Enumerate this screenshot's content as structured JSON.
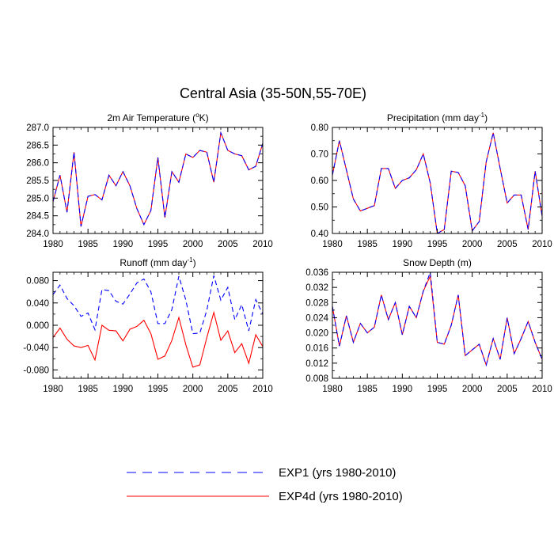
{
  "main_title": "Central Asia (35-50N,55-70E)",
  "colors": {
    "exp1": "#0000ff",
    "exp4d": "#ff0000"
  },
  "legend": [
    {
      "key": "exp1",
      "label": "EXP1 (yrs 1980-2010)",
      "style": "dashed"
    },
    {
      "key": "exp4d",
      "label": "EXP4d (yrs 1980-2010)",
      "style": "solid"
    }
  ],
  "chart_data": [
    {
      "type": "line",
      "id": "temp",
      "title": "2m Air Temperature (",
      "title_sup": "o",
      "title_post": "K)",
      "xlim": [
        1980,
        2010
      ],
      "ylim": [
        284.0,
        287.0
      ],
      "x_ticks": [
        "1980",
        "1985",
        "1990",
        "1995",
        "2000",
        "2005",
        "2010"
      ],
      "y_ticks": [
        "284.0",
        "284.5",
        "285.0",
        "285.5",
        "286.0",
        "286.5",
        "287.0"
      ],
      "x": [
        1980,
        1981,
        1982,
        1983,
        1984,
        1985,
        1986,
        1987,
        1988,
        1989,
        1990,
        1991,
        1992,
        1993,
        1994,
        1995,
        1996,
        1997,
        1998,
        1999,
        2000,
        2001,
        2002,
        2003,
        2004,
        2005,
        2006,
        2007,
        2008,
        2009,
        2010
      ],
      "series": [
        {
          "name": "EXP1",
          "style": "dashed",
          "values": [
            284.9,
            285.65,
            284.6,
            286.3,
            284.2,
            285.05,
            285.1,
            284.95,
            285.65,
            285.35,
            285.75,
            285.35,
            284.7,
            284.25,
            284.65,
            286.15,
            284.45,
            285.75,
            285.45,
            286.25,
            286.15,
            286.35,
            286.3,
            285.45,
            286.85,
            286.35,
            286.25,
            286.2,
            285.8,
            285.9,
            286.55
          ]
        },
        {
          "name": "EXP4d",
          "style": "solid",
          "values": [
            284.9,
            285.65,
            284.6,
            286.3,
            284.2,
            285.05,
            285.1,
            284.95,
            285.65,
            285.35,
            285.75,
            285.35,
            284.7,
            284.25,
            284.65,
            286.15,
            284.45,
            285.75,
            285.45,
            286.25,
            286.15,
            286.35,
            286.3,
            285.45,
            286.85,
            286.35,
            286.25,
            286.2,
            285.8,
            285.9,
            286.55
          ]
        }
      ]
    },
    {
      "type": "line",
      "id": "precip",
      "title": "Precipitation (mm day",
      "title_sup": "-1",
      "title_post": ")",
      "xlim": [
        1980,
        2010
      ],
      "ylim": [
        0.4,
        0.8
      ],
      "x_ticks": [
        "1980",
        "1985",
        "1990",
        "1995",
        "2000",
        "2005",
        "2010"
      ],
      "y_ticks": [
        "0.40",
        "0.50",
        "0.60",
        "0.70",
        "0.80"
      ],
      "x": [
        1980,
        1981,
        1982,
        1983,
        1984,
        1985,
        1986,
        1987,
        1988,
        1989,
        1990,
        1991,
        1992,
        1993,
        1994,
        1995,
        1996,
        1997,
        1998,
        1999,
        2000,
        2001,
        2002,
        2003,
        2004,
        2005,
        2006,
        2007,
        2008,
        2009,
        2010
      ],
      "series": [
        {
          "name": "EXP1",
          "style": "dashed",
          "values": [
            0.62,
            0.75,
            0.64,
            0.53,
            0.485,
            0.495,
            0.505,
            0.645,
            0.645,
            0.57,
            0.6,
            0.61,
            0.64,
            0.7,
            0.59,
            0.4,
            0.415,
            0.635,
            0.63,
            0.58,
            0.41,
            0.445,
            0.67,
            0.78,
            0.645,
            0.515,
            0.545,
            0.545,
            0.415,
            0.635,
            0.465
          ]
        },
        {
          "name": "EXP4d",
          "style": "solid",
          "values": [
            0.62,
            0.75,
            0.64,
            0.53,
            0.485,
            0.495,
            0.505,
            0.645,
            0.645,
            0.57,
            0.6,
            0.61,
            0.64,
            0.7,
            0.59,
            0.4,
            0.415,
            0.635,
            0.63,
            0.58,
            0.41,
            0.445,
            0.67,
            0.78,
            0.645,
            0.515,
            0.545,
            0.545,
            0.415,
            0.635,
            0.465
          ]
        }
      ]
    },
    {
      "type": "line",
      "id": "runoff",
      "title": "Runoff (mm day",
      "title_sup": "-1",
      "title_post": ")",
      "xlim": [
        1980,
        2010
      ],
      "ylim": [
        -0.095,
        0.095
      ],
      "x_ticks": [
        "1980",
        "1985",
        "1990",
        "1995",
        "2000",
        "2005",
        "2010"
      ],
      "y_ticks": [
        "-0.080",
        "-0.040",
        "0.000",
        "0.040",
        "0.080"
      ],
      "y_tick_values": [
        -0.08,
        -0.04,
        0.0,
        0.04,
        0.08
      ],
      "x": [
        1980,
        1981,
        1982,
        1983,
        1984,
        1985,
        1986,
        1987,
        1988,
        1989,
        1990,
        1991,
        1992,
        1993,
        1994,
        1995,
        1996,
        1997,
        1998,
        1999,
        2000,
        2001,
        2002,
        2003,
        2004,
        2005,
        2006,
        2007,
        2008,
        2009,
        2010
      ],
      "series": [
        {
          "name": "EXP1",
          "style": "dashed",
          "values": [
            0.055,
            0.072,
            0.048,
            0.035,
            0.016,
            0.022,
            -0.008,
            0.064,
            0.062,
            0.043,
            0.038,
            0.056,
            0.076,
            0.083,
            0.06,
            0.003,
            0.003,
            0.028,
            0.088,
            0.045,
            -0.015,
            -0.014,
            0.027,
            0.089,
            0.045,
            0.068,
            0.01,
            0.037,
            -0.01,
            0.046,
            0.02
          ]
        },
        {
          "name": "EXP4d",
          "style": "solid",
          "values": [
            -0.022,
            -0.005,
            -0.025,
            -0.037,
            -0.04,
            -0.036,
            -0.062,
            0.0,
            -0.009,
            -0.01,
            -0.028,
            -0.007,
            -0.002,
            0.009,
            -0.015,
            -0.061,
            -0.055,
            -0.027,
            0.014,
            -0.035,
            -0.075,
            -0.071,
            -0.022,
            0.023,
            -0.027,
            -0.01,
            -0.049,
            -0.033,
            -0.068,
            -0.017,
            -0.038
          ]
        }
      ]
    },
    {
      "type": "line",
      "id": "snow",
      "title": "Snow Depth (m)",
      "title_sup": "",
      "title_post": "",
      "xlim": [
        1980,
        2010
      ],
      "ylim": [
        0.008,
        0.036
      ],
      "x_ticks": [
        "1980",
        "1985",
        "1990",
        "1995",
        "2000",
        "2005",
        "2010"
      ],
      "y_ticks": [
        "0.008",
        "0.012",
        "0.016",
        "0.020",
        "0.024",
        "0.028",
        "0.032",
        "0.036"
      ],
      "x": [
        1980,
        1981,
        1982,
        1983,
        1984,
        1985,
        1986,
        1987,
        1988,
        1989,
        1990,
        1991,
        1992,
        1993,
        1994,
        1995,
        1996,
        1997,
        1998,
        1999,
        2000,
        2001,
        2002,
        2003,
        2004,
        2005,
        2006,
        2007,
        2008,
        2009,
        2010
      ],
      "series": [
        {
          "name": "EXP1",
          "style": "dashed",
          "values": [
            0.027,
            0.0165,
            0.0245,
            0.0175,
            0.0225,
            0.02,
            0.0215,
            0.03,
            0.0235,
            0.028,
            0.0195,
            0.027,
            0.024,
            0.031,
            0.036,
            0.0175,
            0.017,
            0.022,
            0.03,
            0.014,
            0.0155,
            0.017,
            0.0115,
            0.0185,
            0.013,
            0.024,
            0.0145,
            0.0185,
            0.023,
            0.0175,
            0.013
          ]
        },
        {
          "name": "EXP4d",
          "style": "solid",
          "values": [
            0.027,
            0.0165,
            0.0245,
            0.0175,
            0.0225,
            0.02,
            0.0215,
            0.03,
            0.0235,
            0.028,
            0.0195,
            0.027,
            0.024,
            0.031,
            0.035,
            0.0175,
            0.017,
            0.022,
            0.03,
            0.014,
            0.0155,
            0.017,
            0.0115,
            0.0185,
            0.013,
            0.024,
            0.0145,
            0.0185,
            0.023,
            0.0175,
            0.013
          ]
        }
      ]
    }
  ]
}
